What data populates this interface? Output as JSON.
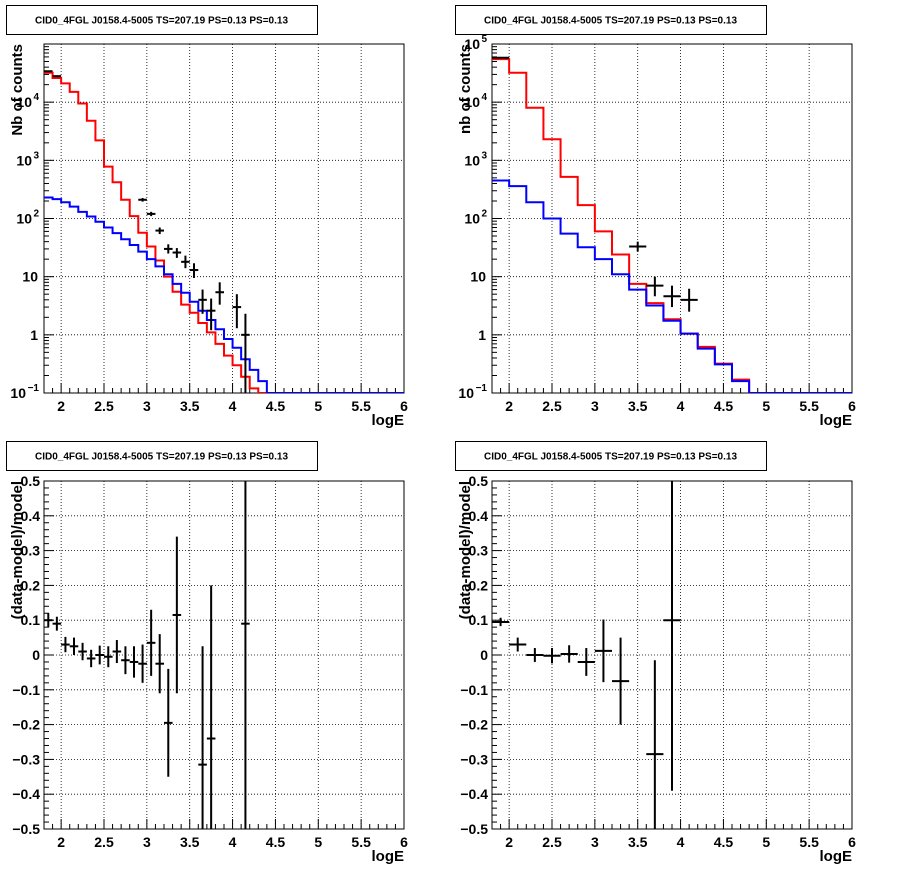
{
  "chart_data": [
    {
      "type": "line",
      "title": "CID0_4FGL J0158.4-5005 TS=207.19 PS=0.13 PS=0.13",
      "xlabel": "logE",
      "ylabel": "Nb of counts",
      "xlim": [
        1.8,
        6.0
      ],
      "ylim": [
        0.1,
        100000
      ],
      "yscale": "log",
      "grid": true,
      "x_tick_labels": [
        "2",
        "2.5",
        "3",
        "3.5",
        "4",
        "4.5",
        "5",
        "5.5",
        "6"
      ],
      "y_tick_labels": [
        {
          "v": 0.1,
          "main": "10",
          "exp": "−1"
        },
        {
          "v": 1,
          "main": "1",
          "exp": ""
        },
        {
          "v": 10,
          "main": "10",
          "exp": ""
        },
        {
          "v": 100,
          "main": "10",
          "exp": "2"
        },
        {
          "v": 1000,
          "main": "10",
          "exp": "3"
        },
        {
          "v": 10000,
          "main": "10",
          "exp": "4"
        }
      ],
      "bin_edges": [
        1.8,
        1.9,
        2.0,
        2.1,
        2.2,
        2.3,
        2.4,
        2.5,
        2.6,
        2.7,
        2.8,
        2.9,
        3.0,
        3.1,
        3.2,
        3.3,
        3.4,
        3.5,
        3.6,
        3.7,
        3.8,
        3.9,
        4.0,
        4.1,
        4.2,
        4.3,
        4.4,
        4.5,
        4.6,
        4.7,
        4.8,
        4.9,
        5.0,
        5.1,
        5.2,
        5.3,
        5.4,
        5.5,
        5.6,
        5.7,
        5.8,
        5.9,
        6.0
      ],
      "series": [
        {
          "color": "#ff0000",
          "style": "step",
          "values": [
            32000,
            26000,
            21000,
            15000,
            9500,
            4800,
            2200,
            780,
            420,
            210,
            110,
            57,
            33,
            19,
            10,
            5.5,
            3.3,
            2.4,
            1.6,
            1.1,
            0.7,
            0.44,
            0.3,
            0.19,
            0.12,
            0.08,
            0.08,
            0.08,
            0.08,
            0.08,
            0.08,
            0.08,
            0.08,
            0.08,
            0.08,
            0.08,
            0.08,
            0.08,
            0.08,
            0.08,
            0.08,
            0.08
          ]
        },
        {
          "color": "#0000ff",
          "style": "step",
          "values": [
            230,
            215,
            190,
            160,
            130,
            108,
            88,
            70,
            56,
            44,
            35,
            27,
            20,
            15,
            11,
            7.5,
            5.3,
            3.7,
            2.6,
            1.8,
            1.25,
            0.85,
            0.6,
            0.38,
            0.25,
            0.16,
            0.1,
            0.08,
            0.08,
            0.08,
            0.08,
            0.08,
            0.08,
            0.08,
            0.08,
            0.08,
            0.08,
            0.08,
            0.08,
            0.08,
            0.08,
            0.08
          ]
        }
      ],
      "data_points": [
        {
          "x": 1.85,
          "y": 34000,
          "xerr": 0.05,
          "ylo": 33800,
          "yhi": 34200
        },
        {
          "x": 1.95,
          "y": 28000,
          "xerr": 0.05,
          "ylo": 27800,
          "yhi": 28200
        },
        {
          "x": 2.95,
          "y": 210,
          "xerr": 0.05,
          "ylo": 195,
          "yhi": 225
        },
        {
          "x": 3.05,
          "y": 120,
          "xerr": 0.05,
          "ylo": 110,
          "yhi": 130
        },
        {
          "x": 3.15,
          "y": 62,
          "xerr": 0.05,
          "ylo": 54,
          "yhi": 70
        },
        {
          "x": 3.25,
          "y": 30,
          "xerr": 0.05,
          "ylo": 25,
          "yhi": 36
        },
        {
          "x": 3.35,
          "y": 26,
          "xerr": 0.05,
          "ylo": 21,
          "yhi": 31
        },
        {
          "x": 3.45,
          "y": 18,
          "xerr": 0.05,
          "ylo": 14,
          "yhi": 23
        },
        {
          "x": 3.55,
          "y": 13,
          "xerr": 0.05,
          "ylo": 9.5,
          "yhi": 17
        },
        {
          "x": 3.65,
          "y": 4,
          "xerr": 0.05,
          "ylo": 2.3,
          "yhi": 6
        },
        {
          "x": 3.75,
          "y": 2.6,
          "xerr": 0.05,
          "ylo": 1.2,
          "yhi": 4.2
        },
        {
          "x": 3.85,
          "y": 5.4,
          "xerr": 0.05,
          "ylo": 3.3,
          "yhi": 8
        },
        {
          "x": 4.05,
          "y": 3,
          "xerr": 0.05,
          "ylo": 1.3,
          "yhi": 5
        },
        {
          "x": 4.15,
          "y": 1,
          "xerr": 0.05,
          "ylo": 0.1,
          "yhi": 2.3
        }
      ]
    },
    {
      "type": "line",
      "title": "CID0_4FGL J0158.4-5005 TS=207.19 PS=0.13 PS=0.13",
      "xlabel": "logE",
      "ylabel": "nb of counts",
      "xlim": [
        1.8,
        6.0
      ],
      "ylim": [
        0.1,
        100000
      ],
      "yscale": "log",
      "grid": true,
      "x_tick_labels": [
        "2",
        "2.5",
        "3",
        "3.5",
        "4",
        "4.5",
        "5",
        "5.5",
        "6"
      ],
      "y_tick_labels": [
        {
          "v": 0.1,
          "main": "10",
          "exp": "−1"
        },
        {
          "v": 1,
          "main": "1",
          "exp": ""
        },
        {
          "v": 10,
          "main": "10",
          "exp": ""
        },
        {
          "v": 100,
          "main": "10",
          "exp": "2"
        },
        {
          "v": 1000,
          "main": "10",
          "exp": "3"
        },
        {
          "v": 10000,
          "main": "10",
          "exp": "4"
        },
        {
          "v": 100000,
          "main": "10",
          "exp": "5"
        }
      ],
      "bin_edges": [
        1.8,
        2.0,
        2.2,
        2.4,
        2.6,
        2.8,
        3.0,
        3.2,
        3.4,
        3.6,
        3.8,
        4.0,
        4.2,
        4.4,
        4.6,
        4.8,
        5.0,
        5.2,
        5.4,
        5.6,
        5.8,
        6.0
      ],
      "series": [
        {
          "color": "#ff0000",
          "style": "step",
          "values": [
            55000,
            32000,
            8000,
            2300,
            520,
            170,
            60,
            24,
            7.5,
            3.5,
            1.85,
            1.05,
            0.62,
            0.32,
            0.17,
            0.08,
            0.08,
            0.08,
            0.08,
            0.08,
            0.08
          ]
        },
        {
          "color": "#0000ff",
          "style": "step",
          "values": [
            450,
            360,
            190,
            100,
            55,
            32,
            20,
            11,
            6,
            3.2,
            1.75,
            1.05,
            0.58,
            0.31,
            0.16,
            0.08,
            0.08,
            0.08,
            0.08,
            0.08,
            0.08
          ]
        }
      ],
      "data_points": [
        {
          "x": 1.9,
          "y": 58000,
          "xerr": 0.1,
          "ylo": 57500,
          "yhi": 58500
        },
        {
          "x": 3.5,
          "y": 33,
          "xerr": 0.1,
          "ylo": 27,
          "yhi": 40
        },
        {
          "x": 3.7,
          "y": 7,
          "xerr": 0.1,
          "ylo": 4.6,
          "yhi": 10
        },
        {
          "x": 3.9,
          "y": 4.6,
          "xerr": 0.1,
          "ylo": 3,
          "yhi": 7
        },
        {
          "x": 4.1,
          "y": 4,
          "xerr": 0.1,
          "ylo": 2.5,
          "yhi": 6.2
        }
      ]
    },
    {
      "type": "scatter",
      "title": "CID0_4FGL J0158.4-5005 TS=207.19 PS=0.13 PS=0.13",
      "xlabel": "logE",
      "ylabel": "(data-model)/model",
      "xlim": [
        1.8,
        6.0
      ],
      "ylim": [
        -0.5,
        0.5
      ],
      "grid": true,
      "x_tick_labels": [
        "2",
        "2.5",
        "3",
        "3.5",
        "4",
        "4.5",
        "5",
        "5.5",
        "6"
      ],
      "y_tick_labels": [
        "−0.5",
        "−0.4",
        "−0.3",
        "−0.2",
        "−0.1",
        "0",
        "0.1",
        "0.2",
        "0.3",
        "0.4",
        "0.5"
      ],
      "data_points": [
        {
          "x": 1.85,
          "y": 0.1,
          "xerr": 0.05,
          "err": 0.02
        },
        {
          "x": 1.95,
          "y": 0.09,
          "xerr": 0.05,
          "err": 0.02
        },
        {
          "x": 2.05,
          "y": 0.03,
          "xerr": 0.05,
          "err": 0.022
        },
        {
          "x": 2.15,
          "y": 0.025,
          "xerr": 0.05,
          "err": 0.025
        },
        {
          "x": 2.25,
          "y": 0.01,
          "xerr": 0.05,
          "err": 0.025
        },
        {
          "x": 2.35,
          "y": -0.01,
          "xerr": 0.05,
          "err": 0.025
        },
        {
          "x": 2.45,
          "y": 0.0,
          "xerr": 0.05,
          "err": 0.027
        },
        {
          "x": 2.55,
          "y": -0.005,
          "xerr": 0.05,
          "err": 0.03
        },
        {
          "x": 2.65,
          "y": 0.01,
          "xerr": 0.05,
          "err": 0.033
        },
        {
          "x": 2.75,
          "y": -0.015,
          "xerr": 0.05,
          "err": 0.04
        },
        {
          "x": 2.85,
          "y": -0.02,
          "xerr": 0.05,
          "err": 0.045
        },
        {
          "x": 2.95,
          "y": -0.025,
          "xerr": 0.05,
          "err": 0.055
        },
        {
          "x": 3.05,
          "y": 0.035,
          "xerr": 0.05,
          "err": 0.095
        },
        {
          "x": 3.15,
          "y": -0.025,
          "xerr": 0.05,
          "err": 0.085
        },
        {
          "x": 3.25,
          "y": -0.195,
          "xerr": 0.05,
          "err": 0.155
        },
        {
          "x": 3.35,
          "y": 0.115,
          "xerr": 0.05,
          "err": 0.225
        },
        {
          "x": 3.65,
          "y": -0.315,
          "xerr": 0.05,
          "err": 0.34
        },
        {
          "x": 3.75,
          "y": -0.24,
          "xerr": 0.05,
          "err": 0.44
        },
        {
          "x": 4.15,
          "y": 0.09,
          "xerr": 0.05,
          "err": 0.75
        }
      ]
    },
    {
      "type": "scatter",
      "title": "CID0_4FGL J0158.4-5005 TS=207.19 PS=0.13 PS=0.13",
      "xlabel": "logE",
      "ylabel": "(data-model)/model",
      "xlim": [
        1.8,
        6.0
      ],
      "ylim": [
        -0.5,
        0.5
      ],
      "grid": true,
      "x_tick_labels": [
        "2",
        "2.5",
        "3",
        "3.5",
        "4",
        "4.5",
        "5",
        "5.5",
        "6"
      ],
      "y_tick_labels": [
        "−0.5",
        "−0.4",
        "−0.3",
        "−0.2",
        "−0.1",
        "0",
        "0.1",
        "0.2",
        "0.3",
        "0.4",
        "0.5"
      ],
      "data_points": [
        {
          "x": 1.9,
          "y": 0.095,
          "xerr": 0.1,
          "err": 0.012
        },
        {
          "x": 2.1,
          "y": 0.03,
          "xerr": 0.1,
          "err": 0.02
        },
        {
          "x": 2.3,
          "y": 0.0,
          "xerr": 0.1,
          "err": 0.02
        },
        {
          "x": 2.5,
          "y": -0.002,
          "xerr": 0.1,
          "err": 0.022
        },
        {
          "x": 2.7,
          "y": 0.003,
          "xerr": 0.1,
          "err": 0.025
        },
        {
          "x": 2.9,
          "y": -0.02,
          "xerr": 0.1,
          "err": 0.04
        },
        {
          "x": 3.1,
          "y": 0.012,
          "xerr": 0.1,
          "err": 0.09
        },
        {
          "x": 3.3,
          "y": -0.075,
          "xerr": 0.1,
          "err": 0.125
        },
        {
          "x": 3.7,
          "y": -0.285,
          "xerr": 0.1,
          "err": 0.27
        },
        {
          "x": 3.9,
          "y": 0.1,
          "xerr": 0.1,
          "err": 0.49
        }
      ]
    }
  ]
}
